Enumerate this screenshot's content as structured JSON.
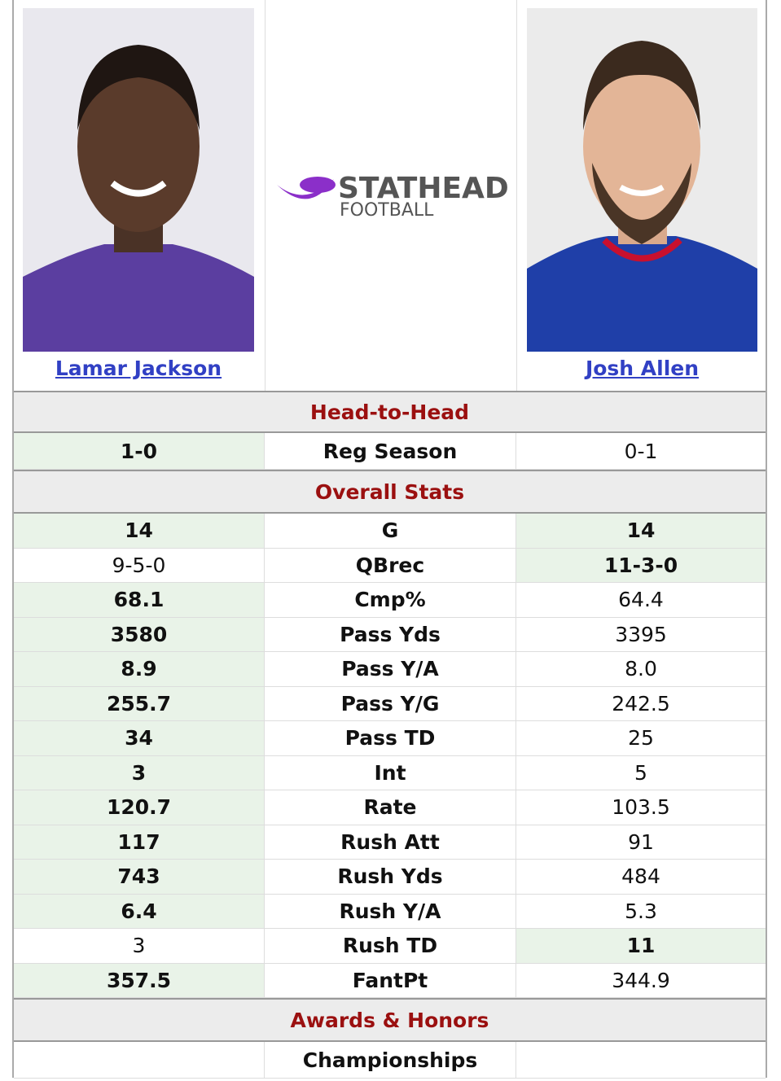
{
  "players": {
    "left": {
      "name": "Lamar Jackson"
    },
    "right": {
      "name": "Josh Allen"
    }
  },
  "logo": {
    "brand": "STATHEAD",
    "sub": "FOOTBALL"
  },
  "sections": [
    {
      "title": "Head-to-Head",
      "rows": [
        {
          "left": "1-0",
          "stat": "Reg Season",
          "right": "0-1",
          "leader": [
            "left"
          ]
        }
      ]
    },
    {
      "title": "Overall Stats",
      "rows": [
        {
          "left": "14",
          "stat": "G",
          "right": "14",
          "leader": [
            "left",
            "right"
          ]
        },
        {
          "left": "9-5-0",
          "stat": "QBrec",
          "right": "11-3-0",
          "leader": [
            "right"
          ]
        },
        {
          "left": "68.1",
          "stat": "Cmp%",
          "right": "64.4",
          "leader": [
            "left"
          ]
        },
        {
          "left": "3580",
          "stat": "Pass Yds",
          "right": "3395",
          "leader": [
            "left"
          ]
        },
        {
          "left": "8.9",
          "stat": "Pass Y/A",
          "right": "8.0",
          "leader": [
            "left"
          ]
        },
        {
          "left": "255.7",
          "stat": "Pass Y/G",
          "right": "242.5",
          "leader": [
            "left"
          ]
        },
        {
          "left": "34",
          "stat": "Pass TD",
          "right": "25",
          "leader": [
            "left"
          ]
        },
        {
          "left": "3",
          "stat": "Int",
          "right": "5",
          "leader": [
            "left"
          ]
        },
        {
          "left": "120.7",
          "stat": "Rate",
          "right": "103.5",
          "leader": [
            "left"
          ]
        },
        {
          "left": "117",
          "stat": "Rush Att",
          "right": "91",
          "leader": [
            "left"
          ]
        },
        {
          "left": "743",
          "stat": "Rush Yds",
          "right": "484",
          "leader": [
            "left"
          ]
        },
        {
          "left": "6.4",
          "stat": "Rush Y/A",
          "right": "5.3",
          "leader": [
            "left"
          ]
        },
        {
          "left": "3",
          "stat": "Rush TD",
          "right": "11",
          "leader": [
            "right"
          ]
        },
        {
          "left": "357.5",
          "stat": "FantPt",
          "right": "344.9",
          "leader": [
            "left"
          ]
        }
      ]
    },
    {
      "title": "Awards & Honors",
      "rows": [
        {
          "stat": "Championships",
          "leader": []
        }
      ]
    }
  ]
}
